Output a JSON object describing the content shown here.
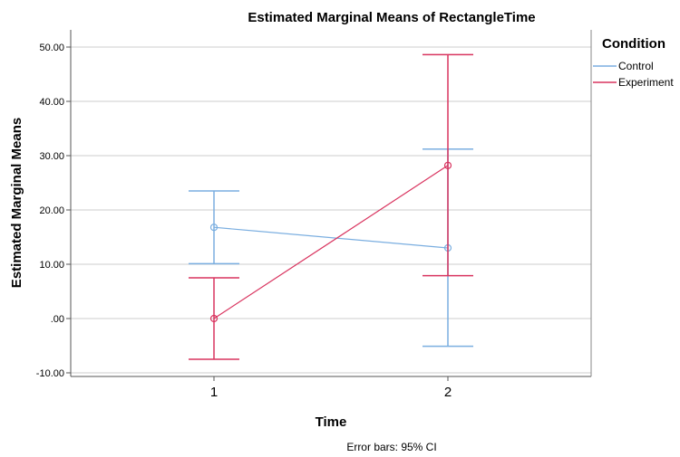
{
  "chart_data": {
    "type": "line",
    "title": "Estimated Marginal Means of RectangleTime",
    "xlabel": "Time",
    "ylabel": "Estimated Marginal Means",
    "categories": [
      "1",
      "2"
    ],
    "ylim": [
      -10,
      50
    ],
    "yticks": [
      {
        "value": -10,
        "label": "-10.00"
      },
      {
        "value": 0,
        "label": ".00"
      },
      {
        "value": 10,
        "label": "10.00"
      },
      {
        "value": 20,
        "label": "20.00"
      },
      {
        "value": 30,
        "label": "30.00"
      },
      {
        "value": 40,
        "label": "40.00"
      },
      {
        "value": 50,
        "label": "50.00"
      }
    ],
    "grid": "horizontal",
    "legend": {
      "title": "Condition",
      "position": "top-right"
    },
    "series": [
      {
        "name": "Control",
        "color": "#7aaee0",
        "values": [
          16.8,
          13.0
        ],
        "ci_low": [
          10.1,
          -5.1
        ],
        "ci_high": [
          23.5,
          31.2
        ]
      },
      {
        "name": "Experiment",
        "color": "#d9345f",
        "values": [
          0.0,
          28.2
        ],
        "ci_low": [
          -7.5,
          7.9
        ],
        "ci_high": [
          7.5,
          48.6
        ]
      }
    ],
    "footnote": "Error bars: 95% CI"
  }
}
